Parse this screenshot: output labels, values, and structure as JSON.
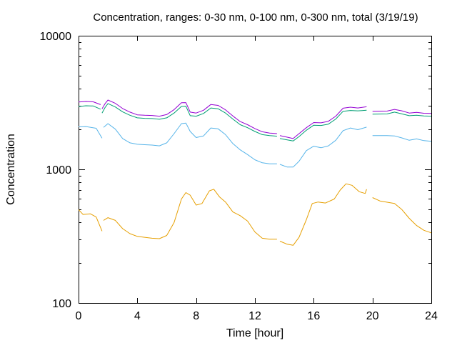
{
  "chart_data": {
    "type": "line",
    "title": "Concentration, ranges: 0-30 nm, 0-100 nm, 0-300 nm, total (3/19/19)",
    "xlabel": "Time [hour]",
    "ylabel": "Concentration",
    "xlim": [
      0,
      24
    ],
    "ylim": [
      100,
      10000
    ],
    "yscale": "log",
    "grid": false,
    "x_ticks": [
      "0",
      "4",
      "8",
      "12",
      "16",
      "20",
      "24"
    ],
    "y_ticks": [
      "100",
      "1000",
      "10000"
    ],
    "series": [
      {
        "color": "#e69f00",
        "segments": [
          [
            [
              0,
              500
            ],
            [
              0.3,
              460
            ],
            [
              0.8,
              465
            ],
            [
              1.2,
              440
            ],
            [
              1.6,
              345
            ]
          ],
          [
            [
              1.7,
              415
            ],
            [
              2,
              435
            ],
            [
              2.5,
              415
            ],
            [
              3,
              360
            ],
            [
              3.5,
              330
            ],
            [
              4,
              315
            ],
            [
              4.5,
              310
            ],
            [
              5,
              305
            ],
            [
              5.5,
              303
            ],
            [
              6,
              320
            ],
            [
              6.5,
              400
            ],
            [
              7,
              600
            ],
            [
              7.3,
              670
            ],
            [
              7.6,
              640
            ],
            [
              8,
              540
            ],
            [
              8.4,
              555
            ],
            [
              8.9,
              690
            ],
            [
              9.2,
              710
            ],
            [
              9.6,
              620
            ],
            [
              10,
              570
            ],
            [
              10.5,
              480
            ],
            [
              11,
              450
            ],
            [
              11.5,
              410
            ],
            [
              12,
              340
            ],
            [
              12.5,
              305
            ],
            [
              13,
              300
            ],
            [
              13.5,
              300
            ]
          ],
          [
            [
              13.7,
              290
            ],
            [
              14.2,
              275
            ],
            [
              14.6,
              270
            ],
            [
              15,
              310
            ],
            [
              15.5,
              420
            ],
            [
              15.9,
              555
            ],
            [
              16.3,
              570
            ],
            [
              16.8,
              560
            ],
            [
              17.4,
              600
            ],
            [
              17.8,
              700
            ],
            [
              18.2,
              780
            ],
            [
              18.6,
              760
            ],
            [
              19.1,
              680
            ],
            [
              19.5,
              660
            ],
            [
              19.6,
              710
            ]
          ],
          [
            [
              20,
              615
            ],
            [
              20.5,
              580
            ],
            [
              21.5,
              555
            ],
            [
              22,
              500
            ],
            [
              22.5,
              430
            ],
            [
              23,
              380
            ],
            [
              23.5,
              350
            ],
            [
              24,
              335
            ]
          ]
        ]
      },
      {
        "color": "#56b4e9",
        "segments": [
          [
            [
              0,
              2080
            ],
            [
              0.5,
              2090
            ],
            [
              1.2,
              2030
            ],
            [
              1.6,
              1710
            ]
          ],
          [
            [
              1.7,
              2060
            ],
            [
              2,
              2200
            ],
            [
              2.5,
              2000
            ],
            [
              3,
              1700
            ],
            [
              3.5,
              1580
            ],
            [
              4,
              1540
            ],
            [
              4.5,
              1530
            ],
            [
              5,
              1520
            ],
            [
              5.5,
              1500
            ],
            [
              6,
              1580
            ],
            [
              6.5,
              1850
            ],
            [
              7,
              2200
            ],
            [
              7.3,
              2220
            ],
            [
              7.6,
              1920
            ],
            [
              8,
              1730
            ],
            [
              8.5,
              1780
            ],
            [
              9,
              2040
            ],
            [
              9.5,
              2010
            ],
            [
              10,
              1820
            ],
            [
              10.5,
              1560
            ],
            [
              11,
              1400
            ],
            [
              11.5,
              1290
            ],
            [
              12,
              1180
            ],
            [
              12.5,
              1120
            ],
            [
              13,
              1100
            ],
            [
              13.5,
              1100
            ]
          ],
          [
            [
              13.7,
              1090
            ],
            [
              14.2,
              1040
            ],
            [
              14.6,
              1040
            ],
            [
              15,
              1150
            ],
            [
              15.5,
              1380
            ],
            [
              16,
              1490
            ],
            [
              16.5,
              1450
            ],
            [
              17,
              1500
            ],
            [
              17.5,
              1650
            ],
            [
              18,
              1950
            ],
            [
              18.5,
              2040
            ],
            [
              19,
              1980
            ],
            [
              19.6,
              2070
            ]
          ],
          [
            [
              20,
              1790
            ],
            [
              21,
              1790
            ],
            [
              21.5,
              1780
            ],
            [
              22,
              1720
            ],
            [
              22.5,
              1650
            ],
            [
              23,
              1690
            ],
            [
              23.5,
              1640
            ],
            [
              24,
              1620
            ]
          ]
        ]
      },
      {
        "color": "#009e73",
        "segments": [
          [
            [
              0,
              2950
            ],
            [
              0.5,
              2990
            ],
            [
              1,
              2980
            ],
            [
              1.5,
              2820
            ]
          ],
          [
            [
              1.6,
              2640
            ],
            [
              1.8,
              2900
            ],
            [
              2,
              3110
            ],
            [
              2.5,
              2930
            ],
            [
              3,
              2690
            ],
            [
              3.5,
              2540
            ],
            [
              4,
              2430
            ],
            [
              4.5,
              2410
            ],
            [
              5,
              2400
            ],
            [
              5.5,
              2370
            ],
            [
              6,
              2430
            ],
            [
              6.5,
              2640
            ],
            [
              7,
              2960
            ],
            [
              7.3,
              2970
            ],
            [
              7.6,
              2520
            ],
            [
              8,
              2500
            ],
            [
              8.5,
              2620
            ],
            [
              9,
              2880
            ],
            [
              9.5,
              2840
            ],
            [
              10,
              2640
            ],
            [
              10.5,
              2380
            ],
            [
              11,
              2160
            ],
            [
              11.5,
              2050
            ],
            [
              12,
              1920
            ],
            [
              12.5,
              1820
            ],
            [
              13,
              1790
            ],
            [
              13.5,
              1770
            ]
          ],
          [
            [
              13.7,
              1700
            ],
            [
              14.2,
              1660
            ],
            [
              14.6,
              1630
            ],
            [
              15,
              1760
            ],
            [
              15.5,
              1960
            ],
            [
              16,
              2140
            ],
            [
              16.5,
              2130
            ],
            [
              17,
              2180
            ],
            [
              17.5,
              2380
            ],
            [
              18,
              2720
            ],
            [
              18.5,
              2760
            ],
            [
              19,
              2740
            ],
            [
              19.6,
              2770
            ]
          ],
          [
            [
              20,
              2590
            ],
            [
              21,
              2600
            ],
            [
              21.5,
              2680
            ],
            [
              22,
              2600
            ],
            [
              22.5,
              2520
            ],
            [
              23,
              2540
            ],
            [
              23.5,
              2510
            ],
            [
              24,
              2500
            ]
          ]
        ]
      },
      {
        "color": "#9400d3",
        "segments": [
          [
            [
              0,
              3190
            ],
            [
              0.5,
              3220
            ],
            [
              1,
              3200
            ],
            [
              1.5,
              3050
            ]
          ],
          [
            [
              1.6,
              2840
            ],
            [
              1.8,
              3100
            ],
            [
              2,
              3300
            ],
            [
              2.5,
              3120
            ],
            [
              3,
              2850
            ],
            [
              3.5,
              2680
            ],
            [
              4,
              2560
            ],
            [
              4.5,
              2540
            ],
            [
              5,
              2530
            ],
            [
              5.5,
              2500
            ],
            [
              6,
              2570
            ],
            [
              6.5,
              2800
            ],
            [
              7,
              3150
            ],
            [
              7.3,
              3160
            ],
            [
              7.6,
              2680
            ],
            [
              8,
              2640
            ],
            [
              8.5,
              2770
            ],
            [
              9,
              3060
            ],
            [
              9.5,
              3010
            ],
            [
              10,
              2790
            ],
            [
              10.5,
              2510
            ],
            [
              11,
              2280
            ],
            [
              11.5,
              2160
            ],
            [
              12,
              2020
            ],
            [
              12.5,
              1910
            ],
            [
              13,
              1870
            ],
            [
              13.5,
              1850
            ]
          ],
          [
            [
              13.7,
              1790
            ],
            [
              14.2,
              1740
            ],
            [
              14.6,
              1700
            ],
            [
              15,
              1850
            ],
            [
              15.5,
              2050
            ],
            [
              16,
              2240
            ],
            [
              16.5,
              2230
            ],
            [
              17,
              2290
            ],
            [
              17.5,
              2500
            ],
            [
              18,
              2870
            ],
            [
              18.5,
              2920
            ],
            [
              19,
              2880
            ],
            [
              19.6,
              2940
            ]
          ],
          [
            [
              20,
              2720
            ],
            [
              21,
              2730
            ],
            [
              21.5,
              2810
            ],
            [
              22,
              2740
            ],
            [
              22.5,
              2640
            ],
            [
              23,
              2670
            ],
            [
              23.5,
              2630
            ],
            [
              24,
              2620
            ]
          ]
        ]
      }
    ]
  }
}
